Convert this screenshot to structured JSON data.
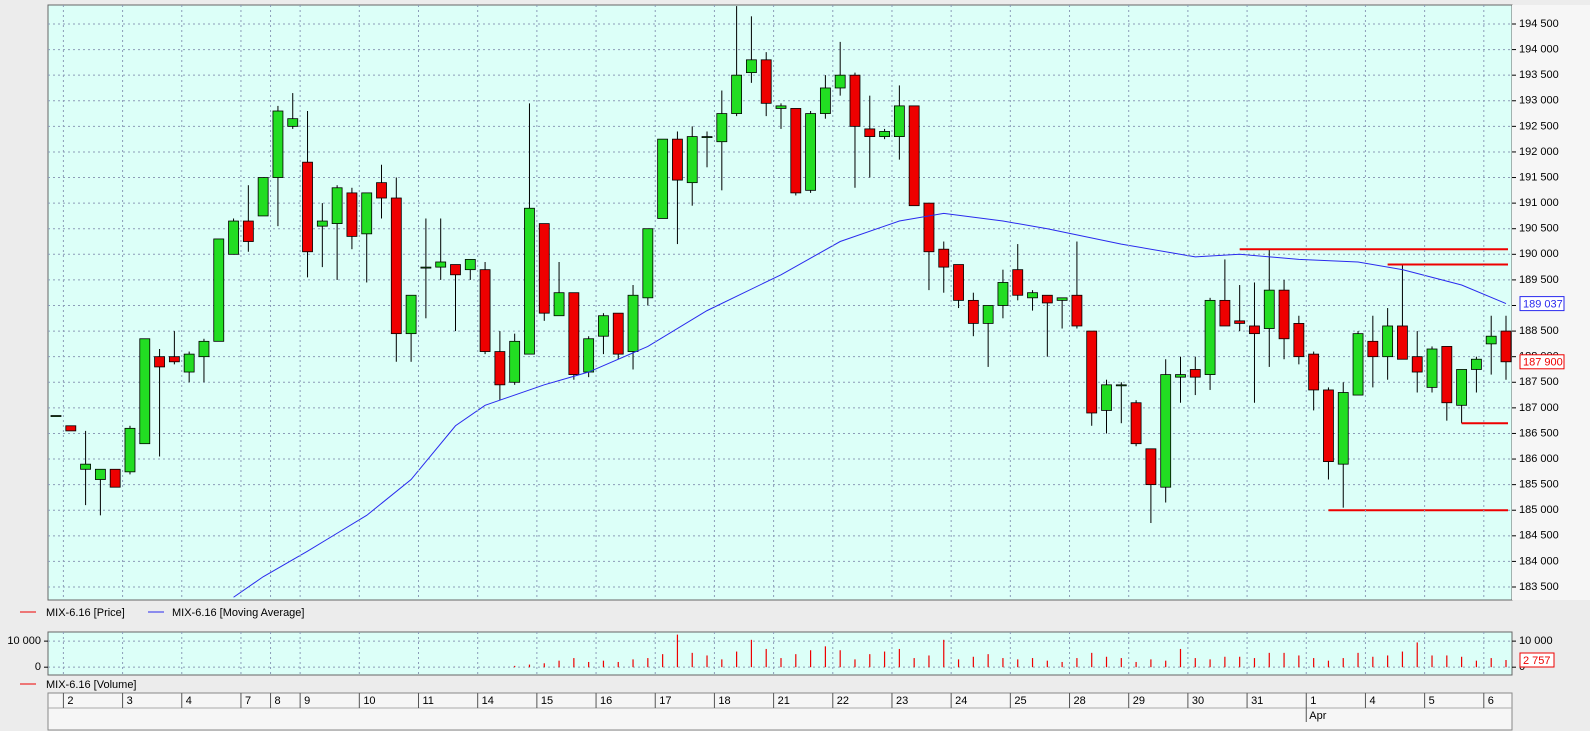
{
  "chart_data": [
    {
      "type": "candlestick",
      "legend": [
        "MIX-6.16 [Price]",
        "MIX-6.16 [Moving Average]"
      ],
      "up_color": "#22dd22",
      "down_color": "#ee0000",
      "open": [
        186850,
        186650,
        185800,
        185600,
        185800,
        185750,
        186300,
        188000,
        188000,
        187700,
        188000,
        188300,
        190000,
        190650,
        190750,
        191500,
        192500,
        191800,
        190550,
        190600,
        191200,
        190400,
        191400,
        191100,
        188450,
        189750,
        189750,
        189800,
        189700,
        189700,
        188100,
        187500,
        188050,
        190600,
        188800,
        189250,
        187700,
        188400,
        188850,
        188100,
        189150,
        190700,
        192250,
        191400,
        192300,
        192200,
        192750,
        193550,
        193800,
        192850,
        192850,
        191250,
        192750,
        193250,
        193500,
        192450,
        192300,
        192300,
        192900,
        191000,
        190100,
        189800,
        189100,
        188650,
        189000,
        189700,
        189150,
        189200,
        189100,
        189200,
        188500,
        186950,
        187450,
        187100,
        186200,
        185450,
        187600,
        187750,
        187650,
        189100,
        188700,
        188600,
        188550,
        189300,
        188650,
        188050,
        187350,
        185900,
        187250,
        188300,
        188000,
        188600,
        188000,
        187400,
        188200,
        187050,
        187750,
        188250,
        188500
      ],
      "high": [
        186850,
        186650,
        186550,
        185800,
        185800,
        186650,
        188350,
        188150,
        188500,
        188100,
        188350,
        190300,
        190700,
        191350,
        191500,
        192900,
        193150,
        192800,
        191000,
        191350,
        191300,
        191200,
        191750,
        191500,
        189200,
        190700,
        190700,
        189800,
        189900,
        189850,
        188500,
        188450,
        192950,
        190600,
        189850,
        189250,
        188400,
        188850,
        188850,
        189400,
        190500,
        192250,
        192400,
        192500,
        192400,
        193200,
        194850,
        194650,
        193950,
        192950,
        192850,
        192800,
        193500,
        194150,
        193550,
        193100,
        192450,
        193300,
        192900,
        191000,
        190250,
        189800,
        189250,
        189000,
        189700,
        190200,
        189300,
        189200,
        189150,
        190250,
        188500,
        187550,
        187500,
        187150,
        186200,
        187950,
        188000,
        188000,
        189150,
        189900,
        189400,
        189450,
        190100,
        189500,
        188800,
        188100,
        187400,
        187500,
        188500,
        188800,
        188950,
        189800,
        188500,
        188200,
        188200,
        187750,
        188000,
        188800,
        188800
      ],
      "low": [
        186850,
        186550,
        185100,
        184900,
        185450,
        185700,
        186300,
        186050,
        187850,
        187500,
        187500,
        188300,
        190000,
        190050,
        190750,
        190550,
        192450,
        189550,
        189750,
        189500,
        190100,
        189450,
        190700,
        187900,
        187900,
        188750,
        189500,
        188500,
        189500,
        188050,
        187150,
        187450,
        188050,
        188700,
        188800,
        187550,
        187600,
        188050,
        187950,
        187750,
        189000,
        190700,
        190200,
        190950,
        191700,
        191250,
        192700,
        193350,
        192700,
        192450,
        191150,
        191200,
        192650,
        193100,
        191300,
        191500,
        192250,
        191850,
        190950,
        189300,
        189250,
        188950,
        188400,
        187800,
        188750,
        189100,
        188900,
        188000,
        188550,
        188550,
        186650,
        186500,
        186700,
        186250,
        184750,
        185150,
        187100,
        187250,
        187350,
        188600,
        188500,
        187100,
        187800,
        187950,
        187850,
        186950,
        185600,
        185050,
        187250,
        187400,
        187550,
        187950,
        187300,
        187300,
        186750,
        186700,
        187300,
        187650,
        187550
      ],
      "close": [
        186850,
        186550,
        185900,
        185800,
        185450,
        186600,
        188350,
        187800,
        187900,
        188050,
        188300,
        190300,
        190650,
        190250,
        191500,
        192800,
        192650,
        190050,
        190650,
        191300,
        190350,
        191200,
        191100,
        188450,
        189200,
        189750,
        189850,
        189600,
        189900,
        188100,
        187450,
        188300,
        190900,
        188850,
        189250,
        187650,
        188350,
        188800,
        188050,
        189200,
        190500,
        192250,
        191450,
        192300,
        192300,
        192750,
        193500,
        193800,
        192950,
        192900,
        191200,
        192750,
        193250,
        193500,
        192500,
        192300,
        192400,
        192900,
        190950,
        190050,
        189750,
        189100,
        188650,
        189000,
        189450,
        189200,
        189250,
        189050,
        189150,
        188600,
        186900,
        187450,
        187450,
        186300,
        185500,
        187650,
        187650,
        187600,
        189100,
        188600,
        188650,
        188450,
        189300,
        188350,
        188000,
        187350,
        185950,
        187300,
        188450,
        188000,
        188600,
        187950,
        187700,
        188150,
        187100,
        187750,
        187950,
        188400,
        187900
      ],
      "last_label": "187 900",
      "moving_average": {
        "color": "#2a2aee",
        "x": [
          12,
          14,
          17,
          19,
          21,
          24,
          27,
          29,
          33,
          36,
          40,
          44,
          49,
          53,
          57,
          60,
          64,
          67,
          72,
          77,
          80,
          84,
          88,
          91,
          95,
          98
        ],
        "values": [
          183300,
          183700,
          184200,
          184550,
          184900,
          185600,
          186650,
          187050,
          187450,
          187700,
          188200,
          188900,
          189600,
          190250,
          190650,
          190800,
          190650,
          190500,
          190200,
          189950,
          190000,
          189900,
          189850,
          189700,
          189400,
          189037
        ],
        "last_label": "189 037"
      },
      "levels": [
        {
          "value": 190100,
          "start": 80
        },
        {
          "value": 189800,
          "start": 90
        },
        {
          "value": 186700,
          "start": 95
        },
        {
          "value": 185000,
          "start": 86
        }
      ],
      "level_color": "#ee0000",
      "ylim": [
        183246,
        194871
      ],
      "yticks": [
        {
          "value": 183500,
          "label": "183 500"
        },
        {
          "value": 184000,
          "label": "184 000"
        },
        {
          "value": 184500,
          "label": "184 500"
        },
        {
          "value": 185000,
          "label": "185 000"
        },
        {
          "value": 185500,
          "label": "185 500"
        },
        {
          "value": 186000,
          "label": "186 000"
        },
        {
          "value": 186500,
          "label": "186 500"
        },
        {
          "value": 187000,
          "label": "187 000"
        },
        {
          "value": 187500,
          "label": "187 500"
        },
        {
          "value": 188000,
          "label": "188 000"
        },
        {
          "value": 188500,
          "label": "188 500"
        },
        {
          "value": 189000,
          "label": "189 000"
        },
        {
          "value": 189500,
          "label": "189 500"
        },
        {
          "value": 190000,
          "label": "190 000"
        },
        {
          "value": 190500,
          "label": "190 500"
        },
        {
          "value": 191000,
          "label": "191 000"
        },
        {
          "value": 191500,
          "label": "191 500"
        },
        {
          "value": 192000,
          "label": "192 000"
        },
        {
          "value": 192500,
          "label": "192 500"
        },
        {
          "value": 193000,
          "label": "193 000"
        },
        {
          "value": 193500,
          "label": "193 500"
        },
        {
          "value": 194000,
          "label": "194 000"
        },
        {
          "value": 194500,
          "label": "194 500"
        }
      ],
      "grid": true
    },
    {
      "type": "bar",
      "legend": [
        "MIX-6.16 [Volume]"
      ],
      "color": "#ee0000",
      "values": [
        0,
        0,
        0,
        0,
        0,
        0,
        0,
        0,
        0,
        0,
        0,
        0,
        0,
        0,
        0,
        0,
        0,
        0,
        0,
        0,
        0,
        0,
        0,
        0,
        0,
        0,
        0,
        0,
        0,
        0,
        0,
        500,
        1000,
        1500,
        2500,
        3500,
        2000,
        2500,
        2000,
        3000,
        3500,
        5000,
        12500,
        5500,
        4500,
        3000,
        6000,
        10500,
        7000,
        3500,
        5000,
        6500,
        8000,
        6500,
        3000,
        5000,
        6000,
        7000,
        3500,
        4500,
        10500,
        3000,
        4000,
        5000,
        3500,
        3000,
        3500,
        2500,
        2000,
        3500,
        5500,
        4000,
        3500,
        2000,
        3000,
        2500,
        7000,
        3500,
        3000,
        4000,
        4000,
        3500,
        5500,
        5500,
        4500,
        3500,
        2500,
        3500,
        5500,
        4000,
        4500,
        6000,
        9500,
        4500,
        4500,
        4000,
        2500,
        3500,
        2757
      ],
      "last_label": "2 757",
      "ylim": [
        -3000,
        13500
      ],
      "yticks": [
        {
          "value": 0,
          "label": "0"
        },
        {
          "value": 10000,
          "label": "10 000"
        }
      ],
      "days": [
        {
          "label": "2",
          "start": 1
        },
        {
          "label": "3",
          "start": 5
        },
        {
          "label": "4",
          "start": 9
        },
        {
          "label": "7",
          "start": 13
        },
        {
          "label": "8",
          "start": 15
        },
        {
          "label": "9",
          "start": 17
        },
        {
          "label": "10",
          "start": 21
        },
        {
          "label": "11",
          "start": 25
        },
        {
          "label": "14",
          "start": 29
        },
        {
          "label": "15",
          "start": 33
        },
        {
          "label": "16",
          "start": 37
        },
        {
          "label": "17",
          "start": 41
        },
        {
          "label": "18",
          "start": 45
        },
        {
          "label": "21",
          "start": 49
        },
        {
          "label": "22",
          "start": 53
        },
        {
          "label": "23",
          "start": 57
        },
        {
          "label": "24",
          "start": 61
        },
        {
          "label": "25",
          "start": 65
        },
        {
          "label": "28",
          "start": 69
        },
        {
          "label": "29",
          "start": 73
        },
        {
          "label": "30",
          "start": 77
        },
        {
          "label": "31",
          "start": 81
        },
        {
          "label": "1",
          "start": 85
        },
        {
          "label": "4",
          "start": 89
        },
        {
          "label": "5",
          "start": 93
        },
        {
          "label": "6",
          "start": 97
        }
      ],
      "month": {
        "label": "Apr",
        "start": 85
      },
      "grid": true
    }
  ]
}
